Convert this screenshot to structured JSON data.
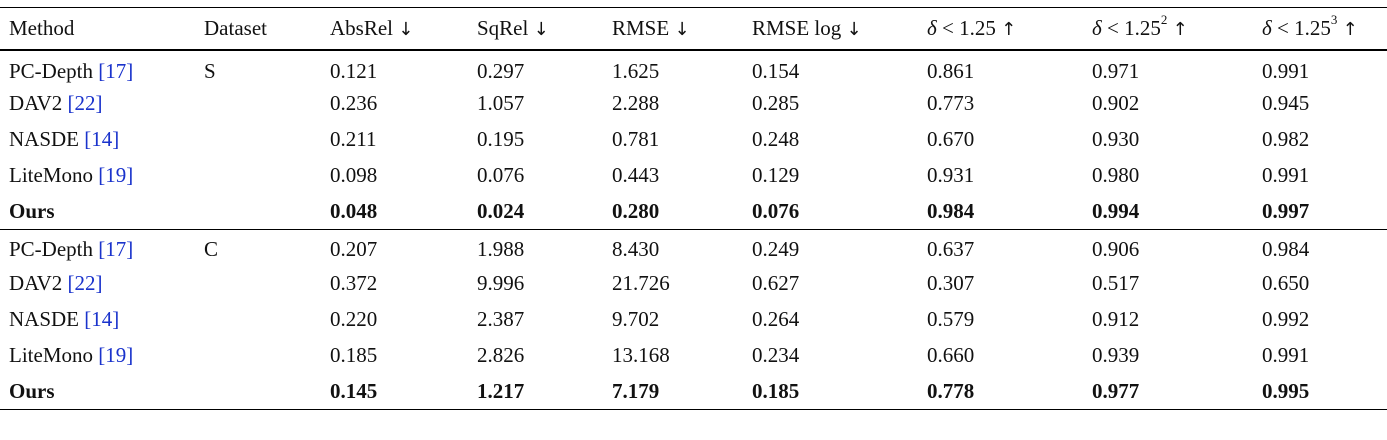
{
  "table": {
    "headers": [
      {
        "text": "Method",
        "arrow": ""
      },
      {
        "text": "Dataset",
        "arrow": ""
      },
      {
        "text": "AbsRel",
        "arrow": "↓"
      },
      {
        "text": "SqRel",
        "arrow": "↓"
      },
      {
        "text": "RMSE",
        "arrow": "↓"
      },
      {
        "text": "RMSE log",
        "arrow": "↓"
      },
      {
        "delta": "δ",
        "text": " < 1.25",
        "sup": "",
        "arrow": "↑"
      },
      {
        "delta": "δ",
        "text": " < 1.25",
        "sup": "2",
        "arrow": "↑"
      },
      {
        "delta": "δ",
        "text": " < 1.25",
        "sup": "3",
        "arrow": "↑"
      }
    ],
    "groups": [
      {
        "dataset": "S",
        "rows": [
          {
            "method": "PC-Depth",
            "ref": "[17]",
            "values": [
              "0.121",
              "0.297",
              "1.625",
              "0.154",
              "0.861",
              "0.971",
              "0.991"
            ],
            "bold": false
          },
          {
            "method": "DAV2",
            "ref": "[22]",
            "values": [
              "0.236",
              "1.057",
              "2.288",
              "0.285",
              "0.773",
              "0.902",
              "0.945"
            ],
            "bold": false
          },
          {
            "method": "NASDE",
            "ref": "[14]",
            "values": [
              "0.211",
              "0.195",
              "0.781",
              "0.248",
              "0.670",
              "0.930",
              "0.982"
            ],
            "bold": false
          },
          {
            "method": "LiteMono",
            "ref": "[19]",
            "values": [
              "0.098",
              "0.076",
              "0.443",
              "0.129",
              "0.931",
              "0.980",
              "0.991"
            ],
            "bold": false
          },
          {
            "method": "Ours",
            "ref": "",
            "values": [
              "0.048",
              "0.024",
              "0.280",
              "0.076",
              "0.984",
              "0.994",
              "0.997"
            ],
            "bold": true
          }
        ]
      },
      {
        "dataset": "C",
        "rows": [
          {
            "method": "PC-Depth",
            "ref": "[17]",
            "values": [
              "0.207",
              "1.988",
              "8.430",
              "0.249",
              "0.637",
              "0.906",
              "0.984"
            ],
            "bold": false
          },
          {
            "method": "DAV2",
            "ref": "[22]",
            "values": [
              "0.372",
              "9.996",
              "21.726",
              "0.627",
              "0.307",
              "0.517",
              "0.650"
            ],
            "bold": false
          },
          {
            "method": "NASDE",
            "ref": "[14]",
            "values": [
              "0.220",
              "2.387",
              "9.702",
              "0.264",
              "0.579",
              "0.912",
              "0.992"
            ],
            "bold": false
          },
          {
            "method": "LiteMono",
            "ref": "[19]",
            "values": [
              "0.185",
              "2.826",
              "13.168",
              "0.234",
              "0.660",
              "0.939",
              "0.991"
            ],
            "bold": false
          },
          {
            "method": "Ours",
            "ref": "",
            "values": [
              "0.145",
              "1.217",
              "7.179",
              "0.185",
              "0.778",
              "0.977",
              "0.995"
            ],
            "bold": true
          }
        ]
      }
    ]
  }
}
